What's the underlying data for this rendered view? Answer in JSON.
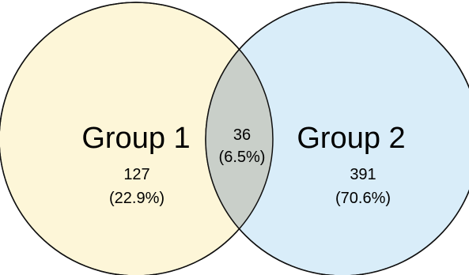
{
  "diagram": {
    "type": "venn",
    "sets": [
      {
        "name": "Group 1",
        "only_count": "127",
        "only_percent": "(22.9%)",
        "fill_color": "#fdf6d8",
        "stroke_color": "#111111"
      },
      {
        "name": "Group 2",
        "only_count": "391",
        "only_percent": "(70.6%)",
        "fill_color": "#d9edf9",
        "stroke_color": "#111111"
      }
    ],
    "intersection": {
      "count": "36",
      "percent": "(6.5%)",
      "fill_color": "#c9cfc9"
    }
  }
}
